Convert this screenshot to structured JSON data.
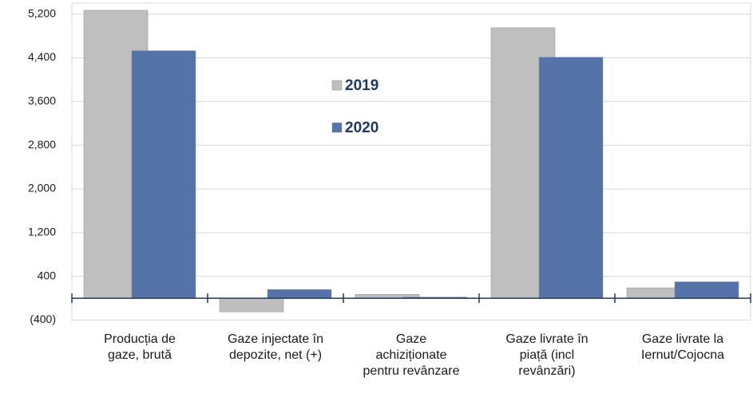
{
  "chart_data": {
    "type": "bar",
    "categories": [
      [
        "Producția de",
        "gaze, brută"
      ],
      [
        "Gaze injectate în",
        "depozite, net (+)"
      ],
      [
        "Gaze",
        "achiziționate",
        "pentru revânzare"
      ],
      [
        "Gaze livrate în",
        "piață (incl",
        "revânzări)"
      ],
      [
        "Gaze livrate la",
        "Iernut/Cojocna"
      ]
    ],
    "series": [
      {
        "name": "2019",
        "color": "#bfbfbf",
        "values": [
          5270,
          -250,
          70,
          4950,
          190
        ]
      },
      {
        "name": "2020",
        "color": "#5573a8",
        "values": [
          4530,
          160,
          20,
          4410,
          300
        ]
      }
    ],
    "ylim": [
      -400,
      5400
    ],
    "yticks": [
      {
        "value": -400,
        "label": "(400)"
      },
      400,
      {
        "value": 1200,
        "label": "1,200"
      },
      {
        "value": 2000,
        "label": "2,000"
      },
      {
        "value": 2800,
        "label": "2,800"
      },
      {
        "value": 3600,
        "label": "3,600"
      },
      {
        "value": 4400,
        "label": "4,400"
      },
      {
        "value": 5200,
        "label": "5,200"
      }
    ],
    "grid": true,
    "legend": "center"
  }
}
